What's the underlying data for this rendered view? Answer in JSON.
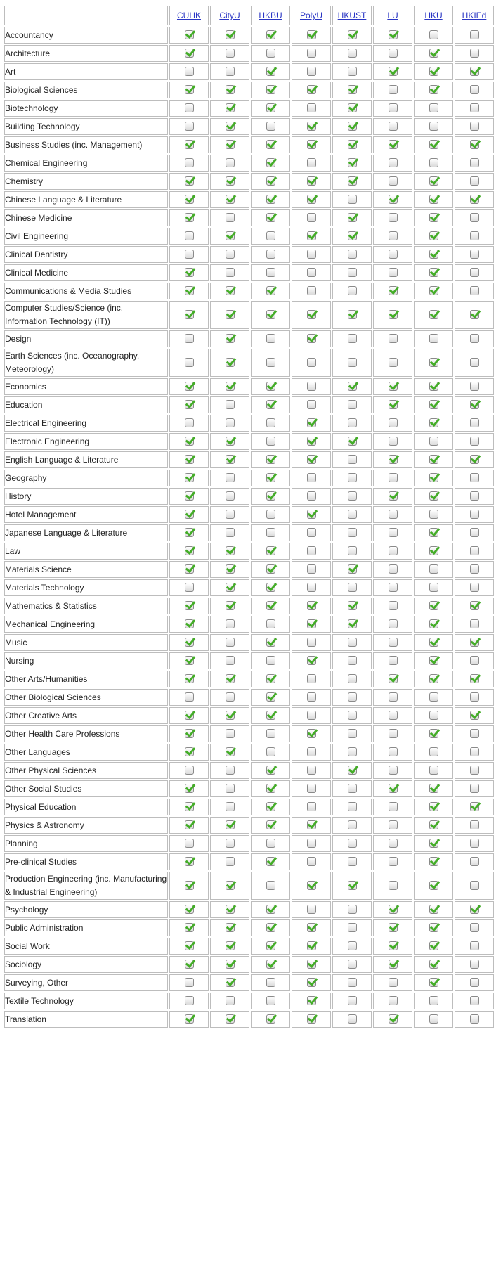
{
  "columns": [
    "CUHK",
    "CityU",
    "HKBU",
    "PolyU",
    "HKUST",
    "LU",
    "HKU",
    "HKIEd"
  ],
  "rows": [
    {
      "subject": "Accountancy",
      "flags": [
        1,
        1,
        1,
        1,
        1,
        1,
        0,
        0
      ]
    },
    {
      "subject": "Architecture",
      "flags": [
        1,
        0,
        0,
        0,
        0,
        0,
        1,
        0
      ]
    },
    {
      "subject": "Art",
      "flags": [
        0,
        0,
        1,
        0,
        0,
        1,
        1,
        1
      ]
    },
    {
      "subject": "Biological Sciences",
      "flags": [
        1,
        1,
        1,
        1,
        1,
        0,
        1,
        0
      ]
    },
    {
      "subject": "Biotechnology",
      "flags": [
        0,
        1,
        1,
        0,
        1,
        0,
        0,
        0
      ]
    },
    {
      "subject": "Building Technology",
      "flags": [
        0,
        1,
        0,
        1,
        1,
        0,
        0,
        0
      ]
    },
    {
      "subject": "Business Studies (inc. Management)",
      "flags": [
        1,
        1,
        1,
        1,
        1,
        1,
        1,
        1
      ]
    },
    {
      "subject": "Chemical Engineering",
      "flags": [
        0,
        0,
        1,
        0,
        1,
        0,
        0,
        0
      ]
    },
    {
      "subject": "Chemistry",
      "flags": [
        1,
        1,
        1,
        1,
        1,
        0,
        1,
        0
      ]
    },
    {
      "subject": "Chinese Language & Literature",
      "flags": [
        1,
        1,
        1,
        1,
        0,
        1,
        1,
        1
      ]
    },
    {
      "subject": "Chinese Medicine",
      "flags": [
        1,
        0,
        1,
        0,
        1,
        0,
        1,
        0
      ]
    },
    {
      "subject": "Civil Engineering",
      "flags": [
        0,
        1,
        0,
        1,
        1,
        0,
        1,
        0
      ]
    },
    {
      "subject": "Clinical Dentistry",
      "flags": [
        0,
        0,
        0,
        0,
        0,
        0,
        1,
        0
      ]
    },
    {
      "subject": "Clinical Medicine",
      "flags": [
        1,
        0,
        0,
        0,
        0,
        0,
        1,
        0
      ]
    },
    {
      "subject": "Communications & Media Studies",
      "flags": [
        1,
        1,
        1,
        0,
        0,
        1,
        1,
        0
      ]
    },
    {
      "subject": "Computer Studies/Science (inc. Information Technology (IT))",
      "flags": [
        1,
        1,
        1,
        1,
        1,
        1,
        1,
        1
      ]
    },
    {
      "subject": "Design",
      "flags": [
        0,
        1,
        0,
        1,
        0,
        0,
        0,
        0
      ]
    },
    {
      "subject": "Earth Sciences (inc. Oceanography, Meteorology)",
      "flags": [
        0,
        1,
        0,
        0,
        0,
        0,
        1,
        0
      ]
    },
    {
      "subject": "Economics",
      "flags": [
        1,
        1,
        1,
        0,
        1,
        1,
        1,
        0
      ]
    },
    {
      "subject": "Education",
      "flags": [
        1,
        0,
        1,
        0,
        0,
        1,
        1,
        1
      ]
    },
    {
      "subject": "Electrical Engineering",
      "flags": [
        0,
        0,
        0,
        1,
        0,
        0,
        1,
        0
      ]
    },
    {
      "subject": "Electronic Engineering",
      "flags": [
        1,
        1,
        0,
        1,
        1,
        0,
        0,
        0
      ]
    },
    {
      "subject": "English Language & Literature",
      "flags": [
        1,
        1,
        1,
        1,
        0,
        1,
        1,
        1
      ]
    },
    {
      "subject": "Geography",
      "flags": [
        1,
        0,
        1,
        0,
        0,
        0,
        1,
        0
      ]
    },
    {
      "subject": "History",
      "flags": [
        1,
        0,
        1,
        0,
        0,
        1,
        1,
        0
      ]
    },
    {
      "subject": "Hotel Management",
      "flags": [
        1,
        0,
        0,
        1,
        0,
        0,
        0,
        0
      ]
    },
    {
      "subject": "Japanese Language & Literature",
      "flags": [
        1,
        0,
        0,
        0,
        0,
        0,
        1,
        0
      ]
    },
    {
      "subject": "Law",
      "flags": [
        1,
        1,
        1,
        0,
        0,
        0,
        1,
        0
      ]
    },
    {
      "subject": "Materials Science",
      "flags": [
        1,
        1,
        1,
        0,
        1,
        0,
        0,
        0
      ]
    },
    {
      "subject": "Materials Technology",
      "flags": [
        0,
        1,
        1,
        0,
        0,
        0,
        0,
        0
      ]
    },
    {
      "subject": "Mathematics & Statistics",
      "flags": [
        1,
        1,
        1,
        1,
        1,
        0,
        1,
        1
      ]
    },
    {
      "subject": "Mechanical Engineering",
      "flags": [
        1,
        0,
        0,
        1,
        1,
        0,
        1,
        0
      ]
    },
    {
      "subject": "Music",
      "flags": [
        1,
        0,
        1,
        0,
        0,
        0,
        1,
        1
      ]
    },
    {
      "subject": "Nursing",
      "flags": [
        1,
        0,
        0,
        1,
        0,
        0,
        1,
        0
      ]
    },
    {
      "subject": "Other Arts/Humanities",
      "flags": [
        1,
        1,
        1,
        0,
        0,
        1,
        1,
        1
      ]
    },
    {
      "subject": "Other Biological Sciences",
      "flags": [
        0,
        0,
        1,
        0,
        0,
        0,
        0,
        0
      ]
    },
    {
      "subject": "Other Creative Arts",
      "flags": [
        1,
        1,
        1,
        0,
        0,
        0,
        0,
        1
      ]
    },
    {
      "subject": "Other Health Care Professions",
      "flags": [
        1,
        0,
        0,
        1,
        0,
        0,
        1,
        0
      ]
    },
    {
      "subject": "Other Languages",
      "flags": [
        1,
        1,
        0,
        0,
        0,
        0,
        0,
        0
      ]
    },
    {
      "subject": "Other Physical Sciences",
      "flags": [
        0,
        0,
        1,
        0,
        1,
        0,
        0,
        0
      ]
    },
    {
      "subject": "Other Social Studies",
      "flags": [
        1,
        0,
        1,
        0,
        0,
        1,
        1,
        0
      ]
    },
    {
      "subject": "Physical Education",
      "flags": [
        1,
        0,
        1,
        0,
        0,
        0,
        1,
        1
      ]
    },
    {
      "subject": "Physics & Astronomy",
      "flags": [
        1,
        1,
        1,
        1,
        0,
        0,
        1,
        0
      ]
    },
    {
      "subject": "Planning",
      "flags": [
        0,
        0,
        0,
        0,
        0,
        0,
        1,
        0
      ]
    },
    {
      "subject": "Pre-clinical Studies",
      "flags": [
        1,
        0,
        1,
        0,
        0,
        0,
        1,
        0
      ]
    },
    {
      "subject": "Production Engineering (inc. Manufacturing & Industrial Engineering)",
      "flags": [
        1,
        1,
        0,
        1,
        1,
        0,
        1,
        0
      ]
    },
    {
      "subject": "Psychology",
      "flags": [
        1,
        1,
        1,
        0,
        0,
        1,
        1,
        1
      ]
    },
    {
      "subject": "Public Administration",
      "flags": [
        1,
        1,
        1,
        1,
        0,
        1,
        1,
        0
      ]
    },
    {
      "subject": "Social Work",
      "flags": [
        1,
        1,
        1,
        1,
        0,
        1,
        1,
        0
      ]
    },
    {
      "subject": "Sociology",
      "flags": [
        1,
        1,
        1,
        1,
        0,
        1,
        1,
        0
      ]
    },
    {
      "subject": "Surveying, Other",
      "flags": [
        0,
        1,
        0,
        1,
        0,
        0,
        1,
        0
      ]
    },
    {
      "subject": "Textile Technology",
      "flags": [
        0,
        0,
        0,
        1,
        0,
        0,
        0,
        0
      ]
    },
    {
      "subject": "Translation",
      "flags": [
        1,
        1,
        1,
        1,
        0,
        1,
        0,
        0
      ]
    }
  ]
}
